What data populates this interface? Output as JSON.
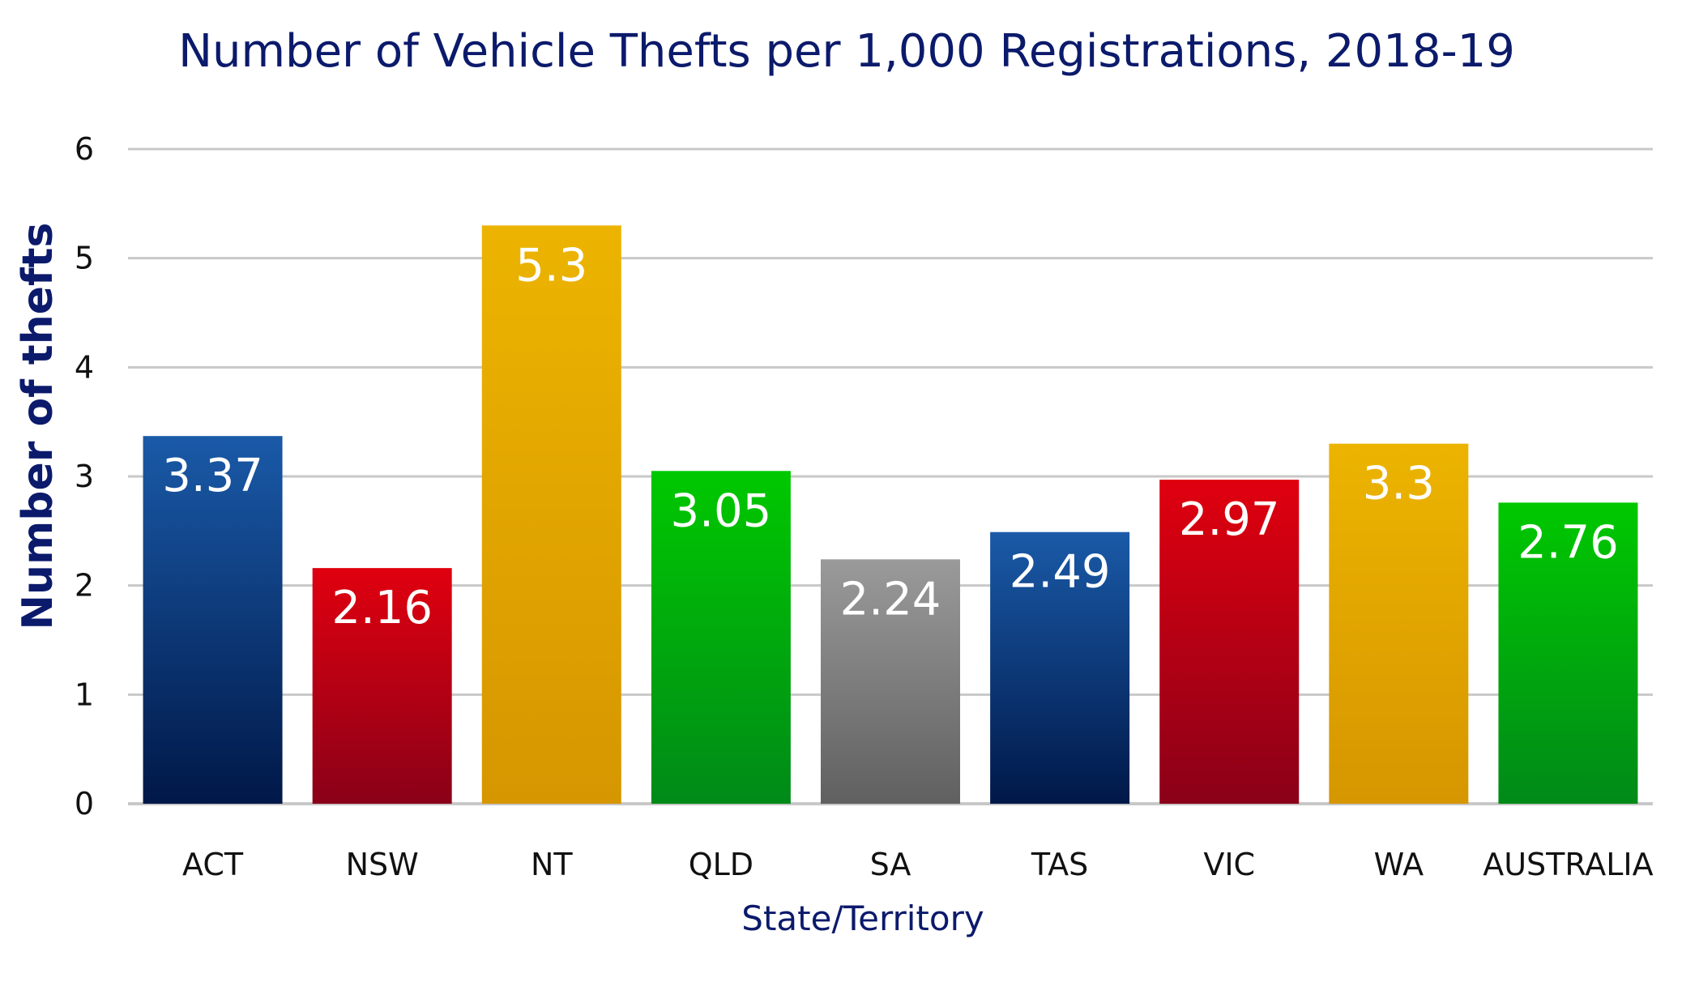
{
  "chart_data": {
    "type": "bar",
    "title": "Number of Vehicle Thefts per 1,000 Registrations, 2018-19",
    "xlabel": "State/Territory",
    "ylabel": "Number of thefts",
    "ylim": [
      0,
      6
    ],
    "yticks": [
      0,
      1,
      2,
      3,
      4,
      5,
      6
    ],
    "grid": true,
    "categories": [
      "ACT",
      "NSW",
      "NT",
      "QLD",
      "SA",
      "TAS",
      "VIC",
      "WA",
      "AUSTRALIA"
    ],
    "values": [
      3.37,
      2.16,
      5.3,
      3.05,
      2.24,
      2.49,
      2.97,
      3.3,
      2.76
    ],
    "value_labels": [
      "3.37",
      "2.16",
      "5.3",
      "3.05",
      "2.24",
      "2.49",
      "2.97",
      "3.3",
      "2.76"
    ],
    "bar_colors": [
      [
        "#1a5aa8",
        "#001848"
      ],
      [
        "#e0000f",
        "#8a0018"
      ],
      [
        "#ecb400",
        "#d69600"
      ],
      [
        "#00c800",
        "#008a18"
      ],
      [
        "#9a9a9a",
        "#606060"
      ],
      [
        "#1a5aa8",
        "#001848"
      ],
      [
        "#e0000f",
        "#8a0018"
      ],
      [
        "#ecb400",
        "#d69600"
      ],
      [
        "#00c800",
        "#008a18"
      ]
    ]
  }
}
